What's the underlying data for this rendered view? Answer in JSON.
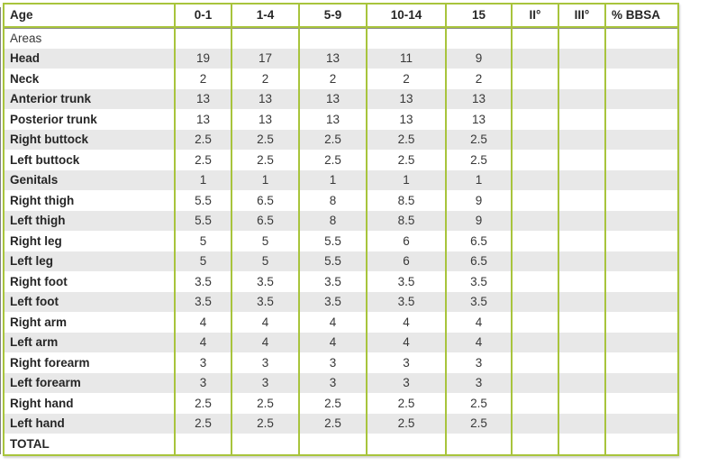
{
  "table": {
    "columns": [
      "Age",
      "0-1",
      "1-4",
      "5-9",
      "10-14",
      "15",
      "II°",
      "III°",
      "% BBSA"
    ],
    "rows": [
      {
        "label": "Areas",
        "bold": false,
        "shaded": false,
        "values": [
          "",
          "",
          "",
          "",
          "",
          "",
          "",
          ""
        ]
      },
      {
        "label": "Head",
        "bold": true,
        "shaded": true,
        "values": [
          "19",
          "17",
          "13",
          "11",
          "9",
          "",
          "",
          ""
        ]
      },
      {
        "label": "Neck",
        "bold": true,
        "shaded": false,
        "values": [
          "2",
          "2",
          "2",
          "2",
          "2",
          "",
          "",
          ""
        ]
      },
      {
        "label": "Anterior trunk",
        "bold": true,
        "shaded": true,
        "values": [
          "13",
          "13",
          "13",
          "13",
          "13",
          "",
          "",
          ""
        ]
      },
      {
        "label": "Posterior trunk",
        "bold": true,
        "shaded": false,
        "values": [
          "13",
          "13",
          "13",
          "13",
          "13",
          "",
          "",
          ""
        ]
      },
      {
        "label": "Right buttock",
        "bold": true,
        "shaded": true,
        "values": [
          "2.5",
          "2.5",
          "2.5",
          "2.5",
          "2.5",
          "",
          "",
          ""
        ]
      },
      {
        "label": "Left buttock",
        "bold": true,
        "shaded": false,
        "values": [
          "2.5",
          "2.5",
          "2.5",
          "2.5",
          "2.5",
          "",
          "",
          ""
        ]
      },
      {
        "label": "Genitals",
        "bold": true,
        "shaded": true,
        "values": [
          "1",
          "1",
          "1",
          "1",
          "1",
          "",
          "",
          ""
        ]
      },
      {
        "label": "Right thigh",
        "bold": true,
        "shaded": false,
        "values": [
          "5.5",
          "6.5",
          "8",
          "8.5",
          "9",
          "",
          "",
          ""
        ]
      },
      {
        "label": "Left thigh",
        "bold": true,
        "shaded": true,
        "values": [
          "5.5",
          "6.5",
          "8",
          "8.5",
          "9",
          "",
          "",
          ""
        ]
      },
      {
        "label": "Right leg",
        "bold": true,
        "shaded": false,
        "values": [
          "5",
          "5",
          "5.5",
          "6",
          "6.5",
          "",
          "",
          ""
        ]
      },
      {
        "label": "Left leg",
        "bold": true,
        "shaded": true,
        "values": [
          "5",
          "5",
          "5.5",
          "6",
          "6.5",
          "",
          "",
          ""
        ]
      },
      {
        "label": "Right foot",
        "bold": true,
        "shaded": false,
        "values": [
          "3.5",
          "3.5",
          "3.5",
          "3.5",
          "3.5",
          "",
          "",
          ""
        ]
      },
      {
        "label": "Left foot",
        "bold": true,
        "shaded": true,
        "values": [
          "3.5",
          "3.5",
          "3.5",
          "3.5",
          "3.5",
          "",
          "",
          ""
        ]
      },
      {
        "label": "Right arm",
        "bold": true,
        "shaded": false,
        "values": [
          "4",
          "4",
          "4",
          "4",
          "4",
          "",
          "",
          ""
        ]
      },
      {
        "label": "Left arm",
        "bold": true,
        "shaded": true,
        "values": [
          "4",
          "4",
          "4",
          "4",
          "4",
          "",
          "",
          ""
        ]
      },
      {
        "label": "Right forearm",
        "bold": true,
        "shaded": false,
        "values": [
          "3",
          "3",
          "3",
          "3",
          "3",
          "",
          "",
          ""
        ]
      },
      {
        "label": "Left forearm",
        "bold": true,
        "shaded": true,
        "values": [
          "3",
          "3",
          "3",
          "3",
          "3",
          "",
          "",
          ""
        ]
      },
      {
        "label": "Right hand",
        "bold": true,
        "shaded": false,
        "values": [
          "2.5",
          "2.5",
          "2.5",
          "2.5",
          "2.5",
          "",
          "",
          ""
        ]
      },
      {
        "label": "Left hand",
        "bold": true,
        "shaded": true,
        "values": [
          "2.5",
          "2.5",
          "2.5",
          "2.5",
          "2.5",
          "",
          "",
          ""
        ]
      },
      {
        "label": "TOTAL",
        "bold": true,
        "shaded": false,
        "values": [
          "",
          "",
          "",
          "",
          "",
          "",
          "",
          ""
        ]
      }
    ],
    "colors": {
      "border_green": "#a8c43c",
      "stripe_gray": "#e8e8e8",
      "text": "#383838",
      "label_text": "#262626",
      "header_rule": "#8b8b8b"
    }
  }
}
